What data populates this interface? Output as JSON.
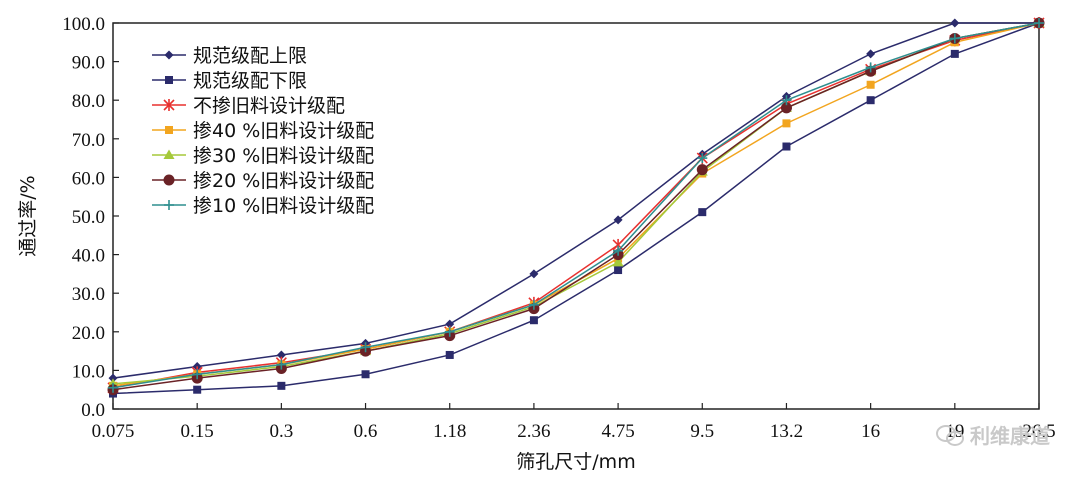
{
  "chart_data": {
    "type": "line",
    "title": "",
    "xlabel": "筛孔尺寸/mm",
    "ylabel": "通过率/%",
    "categories": [
      "0.075",
      "0.15",
      "0.3",
      "0.6",
      "1.18",
      "2.36",
      "4.75",
      "9.5",
      "13.2",
      "16",
      "19",
      "26.5"
    ],
    "ylim": [
      0,
      100
    ],
    "yticks": [
      "0.0",
      "10.0",
      "20.0",
      "30.0",
      "40.0",
      "50.0",
      "60.0",
      "70.0",
      "80.0",
      "90.0",
      "100.0"
    ],
    "legend_position": "top-left",
    "series": [
      {
        "name": "规范级配上限",
        "color": "#2b2b6b",
        "marker": "diamond",
        "values": [
          8,
          11,
          14,
          17,
          22,
          35,
          49,
          66,
          81,
          92,
          100,
          100
        ]
      },
      {
        "name": "规范级配下限",
        "color": "#2b2b6b",
        "marker": "square",
        "values": [
          4,
          5,
          6,
          9,
          14,
          23,
          36,
          51,
          68,
          80,
          92,
          100
        ]
      },
      {
        "name": "不掺旧料设计级配",
        "color": "#e8312f",
        "marker": "star",
        "values": [
          5.5,
          9.5,
          12,
          15.5,
          20,
          27.5,
          42.5,
          65,
          79,
          88,
          95.5,
          100
        ]
      },
      {
        "name": "掺40 %旧料设计级配",
        "color": "#f2a51f",
        "marker": "square",
        "values": [
          6,
          9,
          11.5,
          15.5,
          20,
          27,
          39,
          61,
          74,
          84,
          95,
          100
        ]
      },
      {
        "name": "掺30 %旧料设计级配",
        "color": "#a5c93a",
        "marker": "triangle",
        "values": [
          6.5,
          8.5,
          11,
          15,
          19.5,
          26.5,
          38,
          61.5,
          78,
          87.5,
          96,
          100
        ]
      },
      {
        "name": "掺20 %旧料设计级配",
        "color": "#6a2226",
        "marker": "circle",
        "values": [
          5,
          8,
          10.5,
          15,
          19,
          26,
          40,
          62,
          78,
          87.5,
          96,
          100
        ]
      },
      {
        "name": "掺10 %旧料设计级配",
        "color": "#2f8f8f",
        "marker": "plus",
        "values": [
          5.5,
          9,
          11.5,
          16,
          20,
          27,
          41,
          65,
          80,
          88.5,
          96,
          100
        ]
      }
    ]
  },
  "watermark": {
    "text": "利维康道",
    "icon": "wechat-icon"
  }
}
